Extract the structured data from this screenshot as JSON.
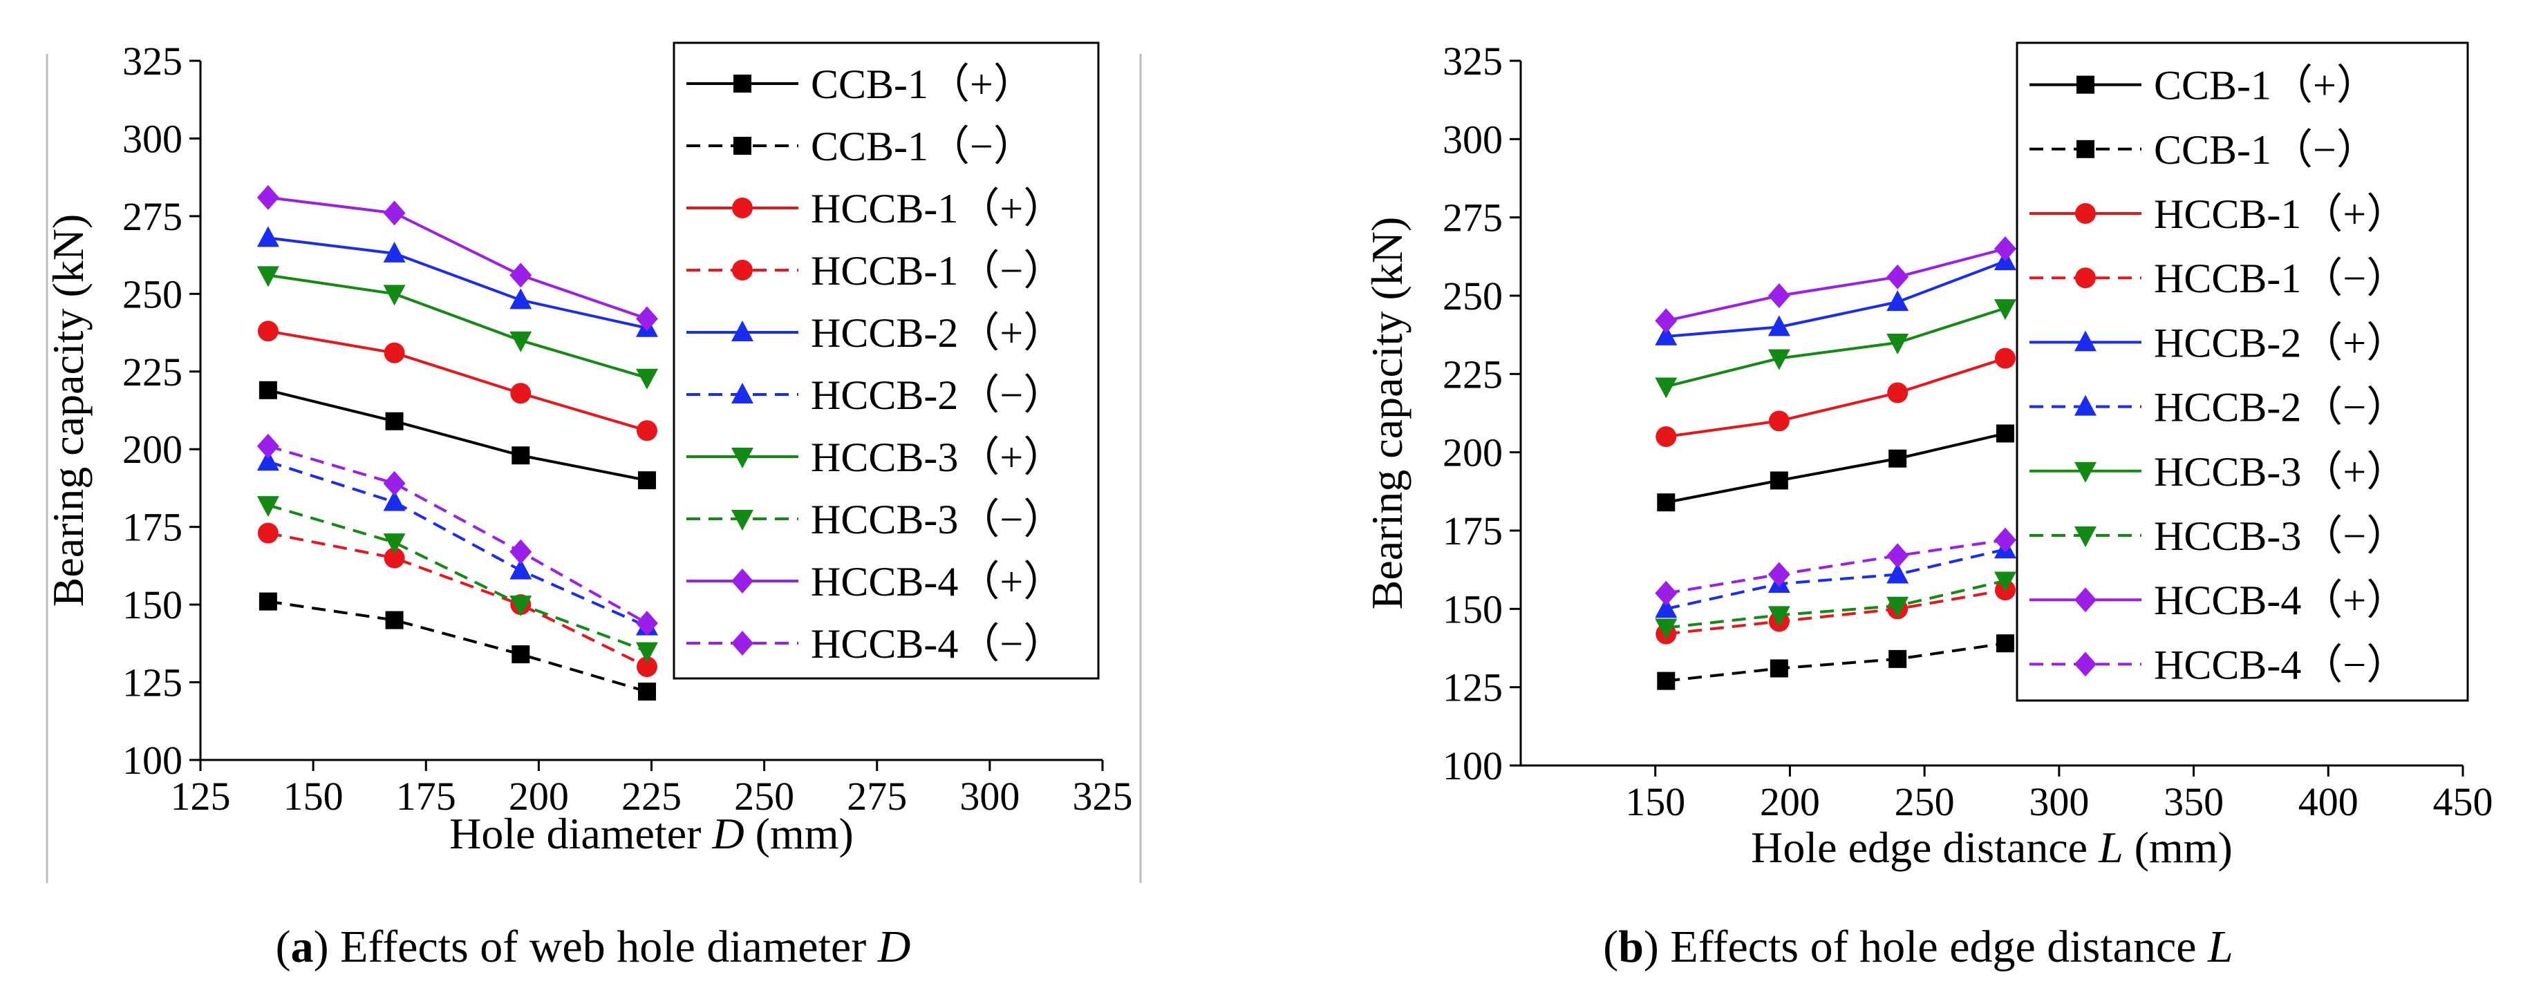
{
  "figure": {
    "panel_a_caption": {
      "label": "a",
      "text": "Effects of web hole diameter ",
      "var": "D"
    },
    "panel_b_caption": {
      "label": "b",
      "text": "Effects of hole edge distance ",
      "var": "L"
    }
  },
  "chart_data": [
    {
      "type": "line",
      "xlabel": "Hole diameter ",
      "xlabel_var": "D",
      "xlabel_unit": " (mm)",
      "ylabel": "Bearing capacity (kN)",
      "xlim": [
        125,
        325
      ],
      "ylim": [
        100,
        325
      ],
      "xticks": [
        125,
        150,
        175,
        200,
        225,
        250,
        275,
        300,
        325
      ],
      "yticks": [
        100,
        125,
        150,
        175,
        200,
        225,
        250,
        275,
        300,
        325
      ],
      "grid": false,
      "legend_position": "top-right",
      "x": [
        140,
        168,
        196,
        224
      ],
      "series": [
        {
          "name": "CCB-1（+）",
          "color": "#000000",
          "dash": false,
          "marker": "square",
          "values": [
            219,
            209,
            198,
            190
          ]
        },
        {
          "name": "CCB-1（−）",
          "color": "#000000",
          "dash": true,
          "marker": "square",
          "values": [
            151,
            145,
            134,
            122
          ]
        },
        {
          "name": "HCCB-1（+）",
          "color": "#e8161a",
          "dash": false,
          "marker": "circle",
          "values": [
            238,
            231,
            218,
            206
          ]
        },
        {
          "name": "HCCB-1（−）",
          "color": "#e8161a",
          "dash": true,
          "marker": "circle",
          "values": [
            173,
            165,
            150,
            130
          ]
        },
        {
          "name": "HCCB-2（+）",
          "color": "#1a2cf0",
          "dash": false,
          "marker": "triangle-up",
          "values": [
            268,
            263,
            248,
            239
          ]
        },
        {
          "name": "HCCB-2（−）",
          "color": "#1a2cf0",
          "dash": true,
          "marker": "triangle-up",
          "values": [
            196,
            183,
            161,
            143
          ]
        },
        {
          "name": "HCCB-3（+）",
          "color": "#138a13",
          "dash": false,
          "marker": "triangle-down",
          "values": [
            256,
            250,
            235,
            223
          ]
        },
        {
          "name": "HCCB-3（−）",
          "color": "#138a13",
          "dash": true,
          "marker": "triangle-down",
          "values": [
            182,
            170,
            150,
            135
          ]
        },
        {
          "name": "HCCB-4（+）",
          "color": "#9b1fe8",
          "dash": false,
          "marker": "diamond",
          "values": [
            281,
            276,
            256,
            242
          ]
        },
        {
          "name": "HCCB-4（−）",
          "color": "#9b1fe8",
          "dash": true,
          "marker": "diamond",
          "values": [
            201,
            189,
            167,
            144
          ]
        }
      ]
    },
    {
      "type": "line",
      "xlabel": "Hole edge distance ",
      "xlabel_var": "L",
      "xlabel_unit": " (mm)",
      "ylabel": "Bearing capacity (kN)",
      "xlim": [
        100,
        450
      ],
      "ylim": [
        100,
        325
      ],
      "xticks": [
        150,
        200,
        250,
        300,
        350,
        400,
        450
      ],
      "yticks": [
        100,
        125,
        150,
        175,
        200,
        225,
        250,
        275,
        300,
        325
      ],
      "grid": false,
      "legend_position": "top-right",
      "x": [
        154,
        196,
        240,
        280
      ],
      "series": [
        {
          "name": "CCB-1（+）",
          "color": "#000000",
          "dash": false,
          "marker": "square",
          "values": [
            184,
            191,
            198,
            206
          ]
        },
        {
          "name": "CCB-1（−）",
          "color": "#000000",
          "dash": true,
          "marker": "square",
          "values": [
            127,
            131,
            134,
            139
          ]
        },
        {
          "name": "HCCB-1（+）",
          "color": "#e8161a",
          "dash": false,
          "marker": "circle",
          "values": [
            205,
            210,
            219,
            230
          ]
        },
        {
          "name": "HCCB-1（−）",
          "color": "#e8161a",
          "dash": true,
          "marker": "circle",
          "values": [
            142,
            146,
            150,
            156
          ]
        },
        {
          "name": "HCCB-2（+）",
          "color": "#1a2cf0",
          "dash": false,
          "marker": "triangle-up",
          "values": [
            237,
            240,
            248,
            261
          ]
        },
        {
          "name": "HCCB-2（−）",
          "color": "#1a2cf0",
          "dash": true,
          "marker": "triangle-up",
          "values": [
            150,
            158,
            161,
            169
          ]
        },
        {
          "name": "HCCB-3（+）",
          "color": "#138a13",
          "dash": false,
          "marker": "triangle-down",
          "values": [
            221,
            230,
            235,
            246
          ]
        },
        {
          "name": "HCCB-3（−）",
          "color": "#138a13",
          "dash": true,
          "marker": "triangle-down",
          "values": [
            144,
            148,
            151,
            159
          ]
        },
        {
          "name": "HCCB-4（+）",
          "color": "#9b1fe8",
          "dash": false,
          "marker": "diamond",
          "values": [
            242,
            250,
            256,
            265
          ]
        },
        {
          "name": "HCCB-4（−）",
          "color": "#9b1fe8",
          "dash": true,
          "marker": "diamond",
          "values": [
            155,
            161,
            167,
            172
          ]
        }
      ]
    }
  ]
}
